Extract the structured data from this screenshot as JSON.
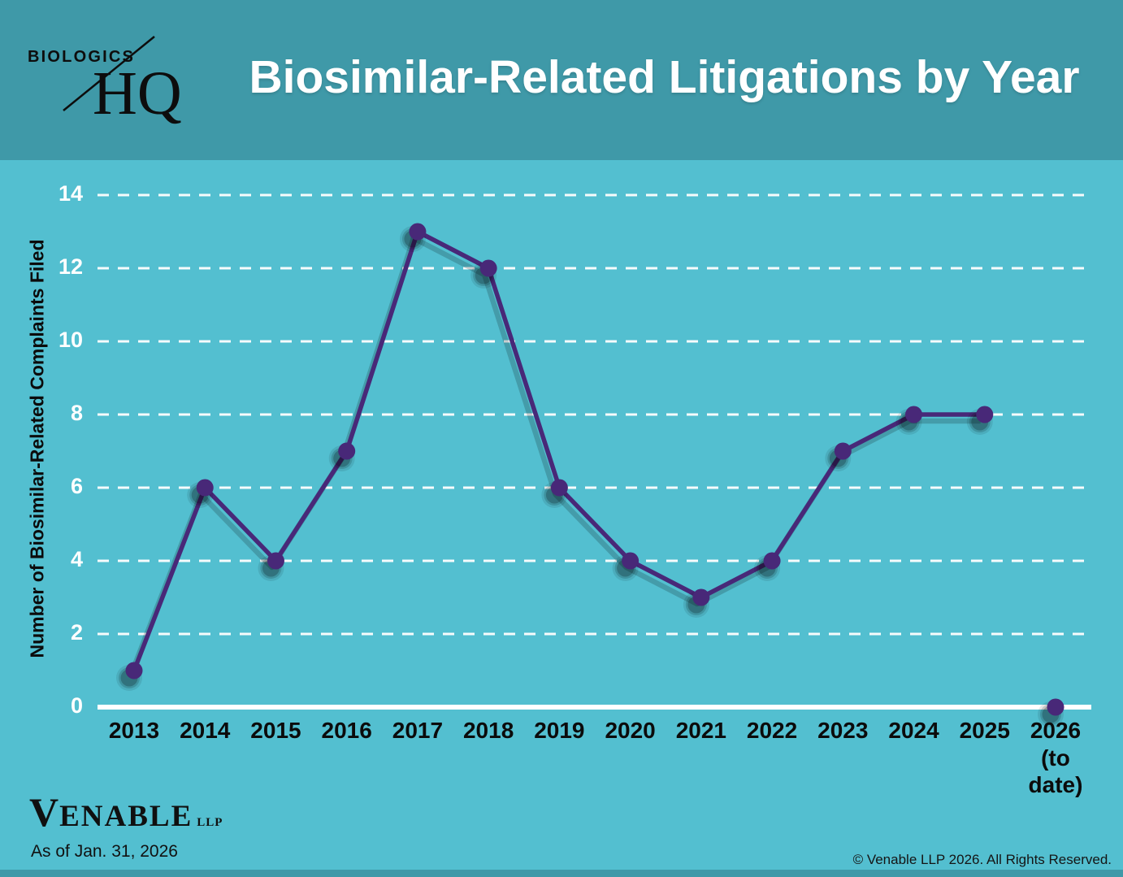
{
  "header": {
    "logo": {
      "line1": "BIOLOGICS",
      "line2": "HQ"
    },
    "title": "Biosimilar-Related Litigations by Year"
  },
  "chart_data": {
    "type": "line",
    "title": "Biosimilar-Related Litigations by Year",
    "xlabel": "",
    "ylabel": "Number of Biosimilar-Related Complaints Filed",
    "categories": [
      "2013",
      "2014",
      "2015",
      "2016",
      "2017",
      "2018",
      "2019",
      "2020",
      "2021",
      "2022",
      "2023",
      "2024",
      "2025",
      "2026 (to date)"
    ],
    "values": [
      1,
      6,
      4,
      7,
      13,
      12,
      6,
      4,
      3,
      4,
      7,
      8,
      8,
      0
    ],
    "ylim": [
      0,
      14
    ],
    "ytick_interval": 2,
    "grid": "horizontal-dashed-white",
    "legend": "none",
    "last_point_disconnected": true
  },
  "colors": {
    "header_bg": "#3F99A8",
    "body_bg": "#53BFD0",
    "line": "#482878",
    "grid": "#FFFFFF",
    "axis": "#FFFFFF"
  },
  "footer": {
    "venable_logo": {
      "initial": "V",
      "rest": "ENABLE",
      "suffix": "LLP"
    },
    "as_of": "As of Jan. 31, 2026",
    "copyright": "© Venable LLP 2026. All Rights Reserved."
  }
}
